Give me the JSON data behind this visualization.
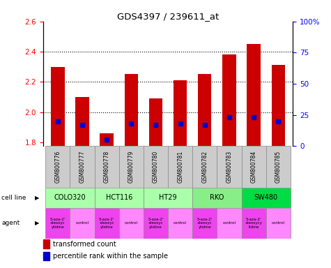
{
  "title": "GDS4397 / 239611_at",
  "samples": [
    "GSM800776",
    "GSM800777",
    "GSM800778",
    "GSM800779",
    "GSM800780",
    "GSM800781",
    "GSM800782",
    "GSM800783",
    "GSM800784",
    "GSM800785"
  ],
  "transformed_counts": [
    2.3,
    2.1,
    1.86,
    2.25,
    2.09,
    2.21,
    2.25,
    2.38,
    2.45,
    2.31
  ],
  "percentile_ranks": [
    20,
    17,
    5,
    18,
    17,
    18,
    17,
    23,
    23,
    20
  ],
  "bar_bottom": 1.775,
  "ylim_left": [
    1.775,
    2.6
  ],
  "ylim_right": [
    0,
    100
  ],
  "yticks_left": [
    1.8,
    2.0,
    2.2,
    2.4,
    2.6
  ],
  "yticks_right": [
    0,
    25,
    50,
    75,
    100
  ],
  "ytick_labels_right": [
    "0",
    "25",
    "50",
    "75",
    "100%"
  ],
  "dotted_levels": [
    2.0,
    2.2,
    2.4
  ],
  "cell_lines": [
    {
      "name": "COLO320",
      "start": 0,
      "end": 2,
      "color": "#aaffaa"
    },
    {
      "name": "HCT116",
      "start": 2,
      "end": 4,
      "color": "#aaffaa"
    },
    {
      "name": "HT29",
      "start": 4,
      "end": 6,
      "color": "#aaffaa"
    },
    {
      "name": "RKO",
      "start": 6,
      "end": 8,
      "color": "#88ee88"
    },
    {
      "name": "SW480",
      "start": 8,
      "end": 10,
      "color": "#00dd44"
    }
  ],
  "agents": [
    {
      "name": "5-aza-2'\n-deoxyc\nytidine",
      "color": "#ee44ee"
    },
    {
      "name": "control",
      "color": "#ff88ff"
    },
    {
      "name": "5-aza-2'\n-deoxyc\nytidine",
      "color": "#ee44ee"
    },
    {
      "name": "control",
      "color": "#ff88ff"
    },
    {
      "name": "5-aza-2'\n-deoxyc\nytidine",
      "color": "#ee44ee"
    },
    {
      "name": "control",
      "color": "#ff88ff"
    },
    {
      "name": "5-aza-2'\n-deoxyc\nytidine",
      "color": "#ee44ee"
    },
    {
      "name": "control",
      "color": "#ff88ff"
    },
    {
      "name": "5-aza-2'\n-deoxycy\ntidine",
      "color": "#ee44ee"
    },
    {
      "name": "control",
      "color": "#ff88ff"
    }
  ],
  "bar_color": "#cc0000",
  "percentile_color": "#0000cc",
  "bar_width": 0.55,
  "sample_bg_color": "#cccccc",
  "legend_red": "transformed count",
  "legend_blue": "percentile rank within the sample"
}
